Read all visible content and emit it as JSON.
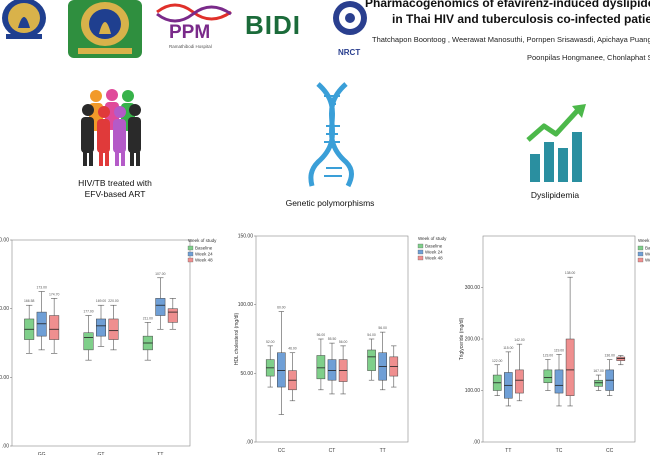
{
  "header": {
    "title_line1": "Pharmacogenomics of efavirenz-induced dyslipidemia",
    "title_line2": "in Thai HIV and tuberculosis co-infected patients",
    "authors_line1": "Thatchapon Boontoog , Weerawat Manosuthi, Pornpen Srisawasdi, Apichaya Puangpetch,",
    "authors_line2": "Poonpilas Hongmanee, Chonlaphat Sukasem",
    "logos": {
      "ppm": "PPM",
      "ppm_sub": "Ramathibodi Hospital",
      "bidi": "BIDI",
      "nrct": "NRCT"
    }
  },
  "infographic": {
    "people_caption_line1": "HIV/TB treated with",
    "people_caption_line2": "EFV-based ART",
    "dna_caption": "Genetic polymorphisms",
    "dyslipidemia_caption": "Dyslipidemia"
  },
  "colors": {
    "baseline": "#7fcf8a",
    "week24": "#6f9fd6",
    "week48": "#ef8f8f",
    "dna": "#3a9fd8",
    "chart_teal": "#2a8fa0",
    "arrow_green": "#4cb84a"
  },
  "chart_data": [
    {
      "type": "box",
      "ylabel": "",
      "ylim": [
        0,
        300
      ],
      "yticks": [
        "300.00",
        "200.00",
        "100.00",
        ".00"
      ],
      "categories": [
        "GG",
        "GT",
        "TT"
      ],
      "legend_title": "Week of study",
      "legend": [
        "Baseline",
        "Week 24",
        "Week 48"
      ],
      "series": [
        {
          "name": "Baseline",
          "boxes": [
            [
              135,
              155,
              170,
              185,
              205
            ],
            [
              125,
              140,
              158,
              165,
              190
            ],
            [
              125,
              140,
              150,
              160,
              180
            ]
          ]
        },
        {
          "name": "Week 24",
          "boxes": [
            [
              140,
              160,
              178,
              195,
              225
            ],
            [
              145,
              160,
              175,
              185,
              205
            ],
            [
              170,
              190,
              205,
              215,
              245
            ]
          ]
        },
        {
          "name": "Week 48",
          "boxes": [
            [
              135,
              155,
              170,
              190,
              215
            ],
            [
              140,
              155,
              168,
              185,
              205
            ],
            [
              170,
              180,
              195,
              200,
              215
            ]
          ]
        }
      ],
      "labels": [
        "166.58",
        "173.00",
        "174.70",
        "177.00",
        "169.00",
        "220.00",
        "211.00",
        "107.00"
      ]
    },
    {
      "type": "box",
      "ylabel": "HDL cholesterol (mg/dl)",
      "ylim": [
        0,
        150
      ],
      "yticks": [
        "150.00",
        "100.00",
        "50.00",
        ".00"
      ],
      "categories": [
        "CC",
        "CT",
        "TT"
      ],
      "legend_title": "Week of study",
      "legend": [
        "Baseline",
        "Week 24",
        "Week 48"
      ],
      "series": [
        {
          "name": "Baseline",
          "boxes": [
            [
              40,
              48,
              54,
              60,
              70
            ],
            [
              38,
              46,
              54,
              63,
              75
            ],
            [
              45,
              52,
              62,
              67,
              75
            ]
          ]
        },
        {
          "name": "Week 24",
          "boxes": [
            [
              20,
              40,
              52,
              65,
              95
            ],
            [
              35,
              45,
              52,
              60,
              72
            ],
            [
              38,
              45,
              55,
              65,
              80
            ]
          ]
        },
        {
          "name": "Week 48",
          "boxes": [
            [
              30,
              38,
              45,
              52,
              65
            ],
            [
              35,
              44,
              52,
              60,
              70
            ],
            [
              40,
              48,
              55,
              62,
              70
            ]
          ]
        }
      ],
      "labels": [
        "52.00",
        "60.00",
        "46.00",
        "56.00",
        "55.50",
        "56.00",
        "54.00",
        "56.00"
      ]
    },
    {
      "type": "box",
      "ylabel": "Triglyceride (mg/dl)",
      "ylim": [
        0,
        400
      ],
      "yticks": [
        "300.00",
        "200.00",
        "100.00",
        ".00"
      ],
      "categories": [
        "TT",
        "TC",
        "CC"
      ],
      "legend_title": "Week of study",
      "legend": [
        "Baseline",
        "Week 24",
        "Week 48"
      ],
      "series": [
        {
          "name": "Baseline",
          "boxes": [
            [
              90,
              100,
              115,
              130,
              150
            ],
            [
              100,
              115,
              125,
              140,
              160
            ],
            [
              100,
              108,
              115,
              120,
              130
            ]
          ]
        },
        {
          "name": "Week 24",
          "boxes": [
            [
              70,
              85,
              110,
              135,
              175
            ],
            [
              70,
              95,
              110,
              140,
              170
            ],
            [
              90,
              100,
              120,
              140,
              160
            ]
          ]
        },
        {
          "name": "Week 48",
          "boxes": [
            [
              80,
              95,
              120,
              140,
              190
            ],
            [
              70,
              90,
              140,
              200,
              320
            ],
            [
              150,
              158,
              162,
              165,
              168
            ]
          ]
        }
      ],
      "labels": [
        "122.00",
        "115.00",
        "142.00",
        "123.00",
        "119.00",
        "138.00",
        "167.00",
        "136.00"
      ]
    }
  ]
}
